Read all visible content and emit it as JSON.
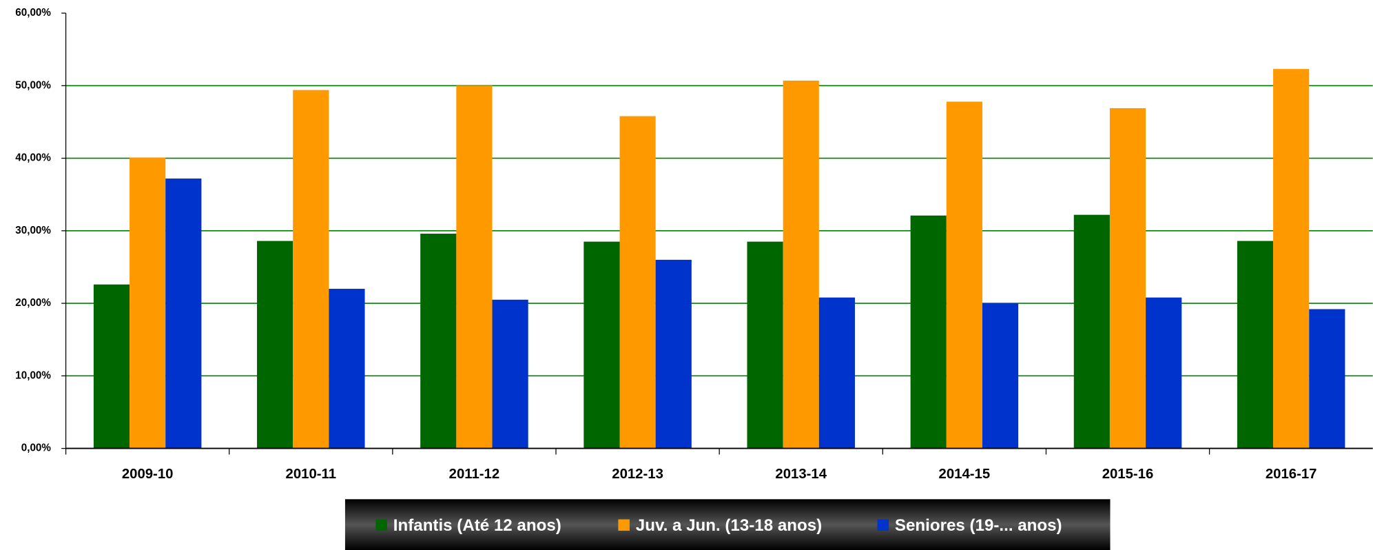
{
  "chart_data": {
    "type": "bar",
    "categories": [
      "2009-10",
      "2010-11",
      "2011-12",
      "2012-13",
      "2013-14",
      "2014-15",
      "2015-16",
      "2016-17"
    ],
    "series": [
      {
        "name": "Infantis (Até 12 anos)",
        "color": "#006600",
        "values": [
          22.6,
          28.6,
          29.6,
          28.5,
          28.5,
          32.1,
          32.2,
          28.6
        ]
      },
      {
        "name": "Juv. a Jun. (13-18 anos)",
        "color": "#ff9900",
        "values": [
          40.1,
          49.4,
          50.0,
          45.8,
          50.7,
          47.8,
          46.9,
          52.3
        ]
      },
      {
        "name": "Seniores (19-... anos)",
        "color": "#0033cc",
        "values": [
          37.2,
          22.0,
          20.5,
          26.0,
          20.8,
          20.0,
          20.8,
          19.2
        ]
      }
    ],
    "ylim": [
      0,
      60
    ],
    "yticks": [
      {
        "value": 0,
        "label": "0,00%"
      },
      {
        "value": 10,
        "label": "10,00%"
      },
      {
        "value": 20,
        "label": "20,00%"
      },
      {
        "value": 30,
        "label": "30,00%"
      },
      {
        "value": 40,
        "label": "40,00%"
      },
      {
        "value": 50,
        "label": "50,00%"
      },
      {
        "value": 60,
        "label": "60,00%"
      }
    ],
    "grid": true,
    "legend": "bottom"
  }
}
